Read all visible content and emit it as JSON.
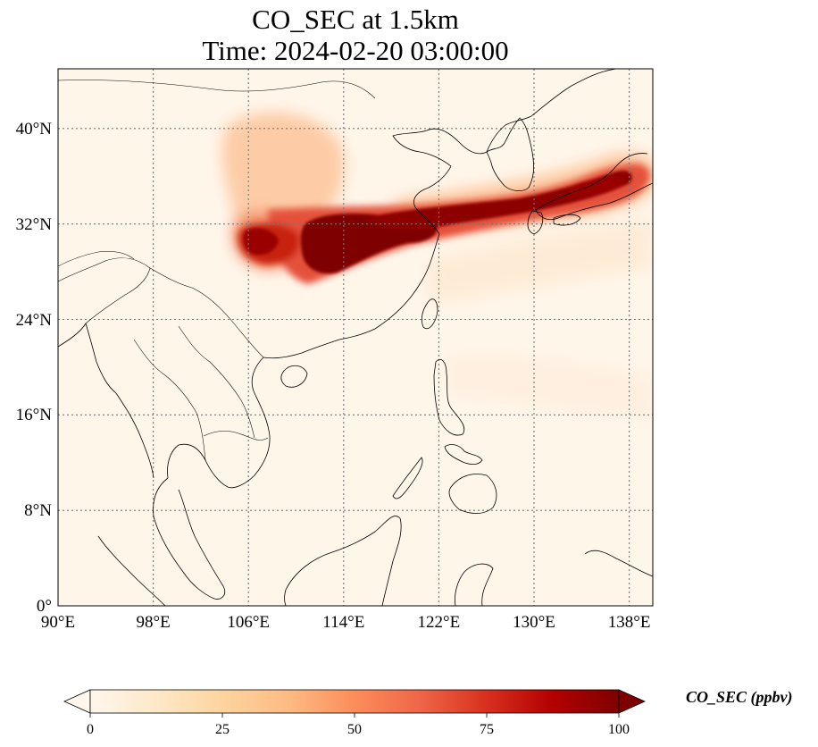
{
  "title_line1": "CO_SEC at 1.5km",
  "title_line2": "Time: 2024-02-20 03:00:00",
  "lat_labels": [
    "0°",
    "8°N",
    "16°N",
    "24°N",
    "32°N",
    "40°N"
  ],
  "lon_labels": [
    "90°E",
    "98°E",
    "106°E",
    "114°E",
    "122°E",
    "130°E",
    "138°E"
  ],
  "colorbar": {
    "label": "CO_SEC (ppbv)",
    "ticks": [
      "0",
      "25",
      "50",
      "75",
      "100"
    ],
    "colormap": "OrRd",
    "colors": [
      "#fff7ec",
      "#fee8c8",
      "#fdd49e",
      "#fdbb84",
      "#fc8d59",
      "#ef6548",
      "#d7301f",
      "#b30000",
      "#7f0000"
    ],
    "extend": "both"
  },
  "chart_data": {
    "type": "heatmap",
    "variable": "CO_SEC",
    "units": "ppbv",
    "level": "1.5km",
    "time": "2024-02-20 03:00:00",
    "lon_range": [
      90,
      140
    ],
    "lat_range": [
      0,
      45
    ],
    "lon_ticks": [
      90,
      98,
      106,
      114,
      122,
      130,
      138
    ],
    "lat_ticks": [
      0,
      8,
      16,
      24,
      32,
      40
    ],
    "value_range": [
      0,
      100
    ],
    "gridlines": true,
    "colorbar_location": "bottom"
  }
}
